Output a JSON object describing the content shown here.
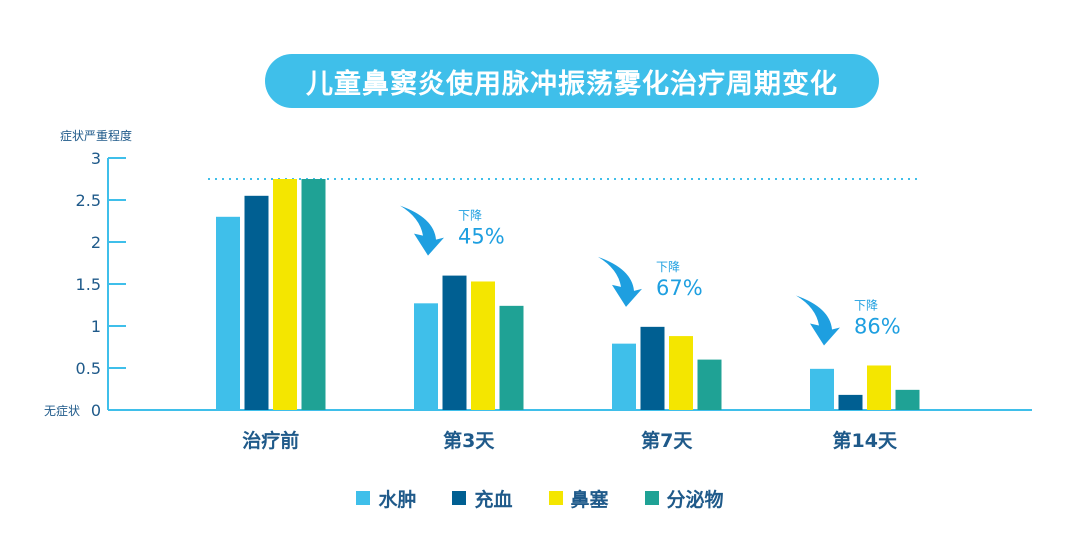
{
  "title": "儿童鼻窦炎使用脉冲振荡雾化治疗周期变化",
  "chart_data": {
    "type": "bar",
    "ylabel": "症状严重程度",
    "ylim": [
      0,
      3
    ],
    "yticks": [
      {
        "value": 0,
        "label": "0",
        "prefix": "无症状"
      },
      {
        "value": 0.5,
        "label": "0.5"
      },
      {
        "value": 1,
        "label": "1"
      },
      {
        "value": 1.5,
        "label": "1.5"
      },
      {
        "value": 2,
        "label": "2"
      },
      {
        "value": 2.5,
        "label": "2.5"
      },
      {
        "value": 3,
        "label": "3"
      }
    ],
    "categories": [
      "治疗前",
      "第3天",
      "第7天",
      "第14天"
    ],
    "series": [
      {
        "name": "水肿",
        "color": "#3fbfea",
        "values": [
          2.3,
          1.27,
          0.79,
          0.49
        ]
      },
      {
        "name": "充血",
        "color": "#005f92",
        "values": [
          2.55,
          1.6,
          0.99,
          0.18
        ]
      },
      {
        "name": "鼻塞",
        "color": "#f4e600",
        "values": [
          2.75,
          1.53,
          0.88,
          0.53
        ]
      },
      {
        "name": "分泌物",
        "color": "#1fa295",
        "values": [
          2.75,
          1.24,
          0.6,
          0.24
        ]
      }
    ],
    "reference_line": {
      "value": 2.75,
      "style": "dotted",
      "color": "#3fbfea"
    },
    "annotations": [
      {
        "category": "第3天",
        "label": "下降",
        "value": "45%"
      },
      {
        "category": "第7天",
        "label": "下降",
        "value": "67%"
      },
      {
        "category": "第14天",
        "label": "下降",
        "value": "86%"
      }
    ],
    "grid": false,
    "legend_position": "bottom"
  }
}
